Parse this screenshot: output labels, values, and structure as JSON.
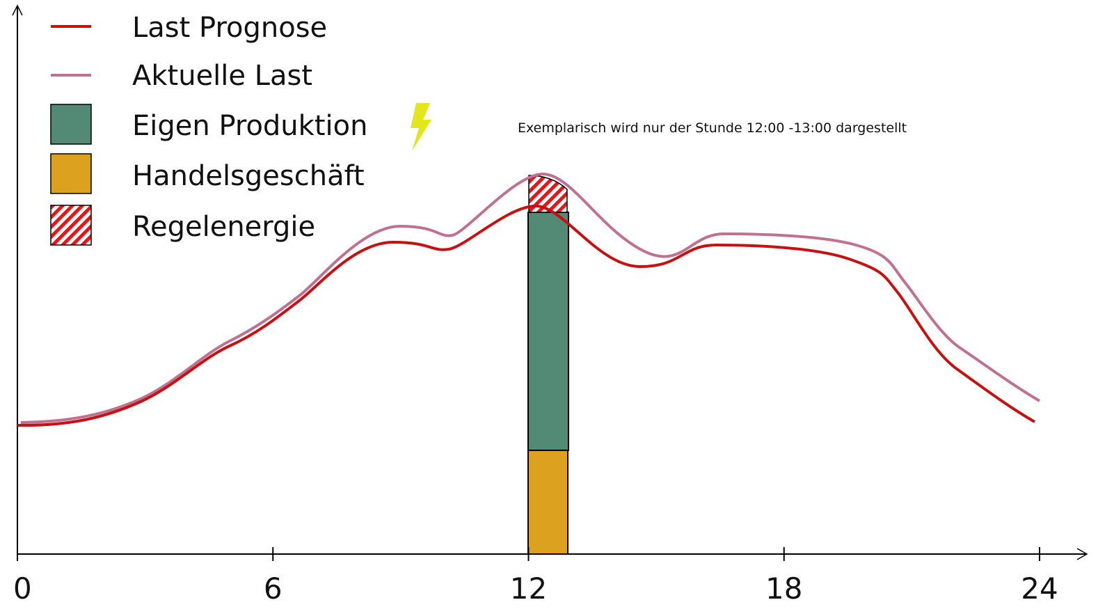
{
  "legend": [
    "Last Prognose",
    "Aktuelle Last",
    "Eigen Produktion",
    "Handelsgeschäft",
    "Regelenergie"
  ],
  "annotation": "Exemplarisch wird nur der Stunde 12:00 -13:00 dargestellt",
  "x_axis": {
    "ticks": [
      "0",
      "6",
      "12",
      "18",
      "24"
    ]
  }
}
